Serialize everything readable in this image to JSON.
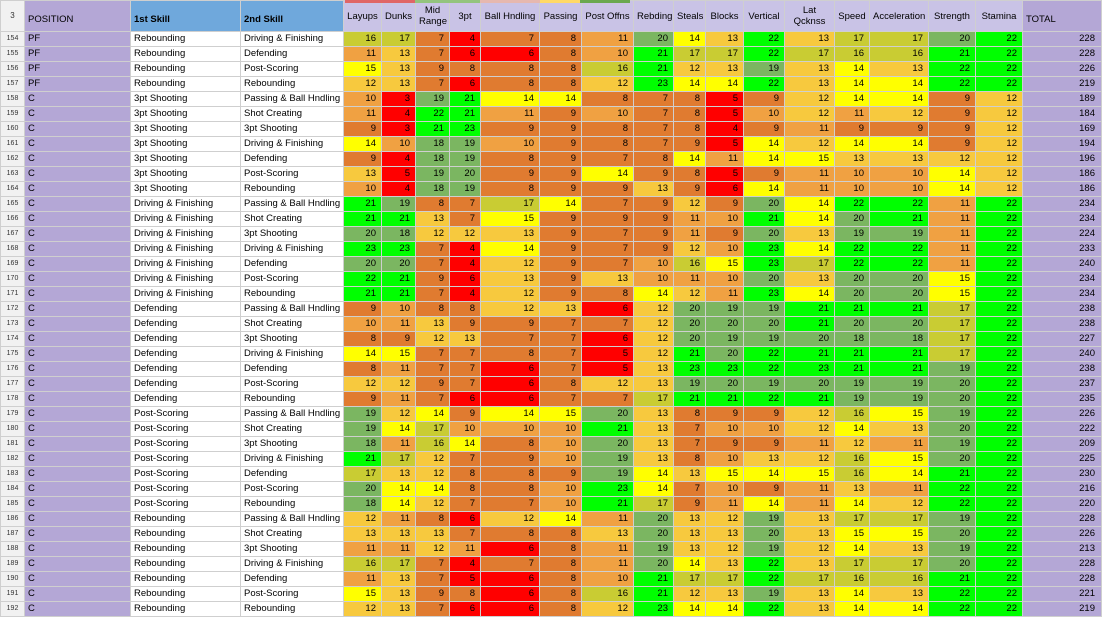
{
  "sheet": {
    "header_row_number": "3",
    "headers": {
      "position": "POSITION",
      "skill1": "1st Skill",
      "skill2": "2nd Skill",
      "stats": [
        "Layups",
        "Dunks",
        "Mid Range",
        "3pt",
        "Ball Hndling",
        "Passing",
        "Post Offns",
        "Rebding",
        "Steals",
        "Blocks",
        "Vertical",
        "Lat Qcknss",
        "Speed",
        "Acceleration",
        "Strength",
        "Stamina"
      ],
      "total": "TOTAL"
    },
    "header_accent_colors": [
      "#e06666",
      "#93c47d",
      "#e6b8af",
      "#ffd966",
      "#6aa84f"
    ],
    "cell_colors": {
      "red": "#ff0000",
      "dark_orange": "#e07b30",
      "orange": "#f0a142",
      "yellow_orange": "#f7c93e",
      "yellow": "#ffff00",
      "olive": "#c9cc33",
      "muted_green": "#7bb661",
      "green": "#00ff00",
      "position_lavender": "#b4a7d6",
      "skill_blue": "#6fa8dc"
    },
    "rows": [
      {
        "n": "154",
        "pos": "PF",
        "s1": "Rebounding",
        "s2": "Driving & Finishing",
        "v": [
          "16",
          "17",
          "7",
          "4",
          "7",
          "8",
          "11",
          "20",
          "14",
          "13",
          "22",
          "13",
          "17",
          "17",
          "20",
          "22"
        ],
        "total": "228"
      },
      {
        "n": "155",
        "pos": "PF",
        "s1": "Rebounding",
        "s2": "Defending",
        "v": [
          "11",
          "13",
          "7",
          "6",
          "6",
          "8",
          "10",
          "21",
          "17",
          "17",
          "22",
          "17",
          "16",
          "16",
          "21",
          "22"
        ],
        "total": "228"
      },
      {
        "n": "156",
        "pos": "PF",
        "s1": "Rebounding",
        "s2": "Post-Scoring",
        "v": [
          "15",
          "13",
          "9",
          "8",
          "8",
          "8",
          "16",
          "21",
          "12",
          "13",
          "19",
          "13",
          "14",
          "13",
          "22",
          "22"
        ],
        "total": "226"
      },
      {
        "n": "157",
        "pos": "PF",
        "s1": "Rebounding",
        "s2": "Rebounding",
        "v": [
          "12",
          "13",
          "7",
          "6",
          "8",
          "8",
          "12",
          "23",
          "14",
          "14",
          "22",
          "13",
          "14",
          "14",
          "22",
          "22"
        ],
        "total": "219"
      },
      {
        "n": "158",
        "pos": "C",
        "s1": "3pt Shooting",
        "s2": "Passing & Ball Hndling",
        "v": [
          "10",
          "3",
          "19",
          "21",
          "14",
          "14",
          "8",
          "7",
          "8",
          "5",
          "9",
          "12",
          "14",
          "14",
          "9",
          "12"
        ],
        "total": "189"
      },
      {
        "n": "159",
        "pos": "C",
        "s1": "3pt Shooting",
        "s2": "Shot Creating",
        "v": [
          "11",
          "4",
          "22",
          "21",
          "11",
          "9",
          "10",
          "7",
          "8",
          "5",
          "10",
          "12",
          "11",
          "12",
          "9",
          "12"
        ],
        "total": "184"
      },
      {
        "n": "160",
        "pos": "C",
        "s1": "3pt Shooting",
        "s2": "3pt Shooting",
        "v": [
          "9",
          "3",
          "21",
          "23",
          "9",
          "9",
          "8",
          "7",
          "8",
          "4",
          "9",
          "11",
          "9",
          "9",
          "9",
          "12"
        ],
        "total": "169"
      },
      {
        "n": "161",
        "pos": "C",
        "s1": "3pt Shooting",
        "s2": "Driving & Finishing",
        "v": [
          "14",
          "10",
          "18",
          "19",
          "10",
          "9",
          "8",
          "7",
          "9",
          "5",
          "14",
          "12",
          "14",
          "14",
          "9",
          "12"
        ],
        "total": "194"
      },
      {
        "n": "162",
        "pos": "C",
        "s1": "3pt Shooting",
        "s2": "Defending",
        "v": [
          "9",
          "4",
          "18",
          "19",
          "8",
          "9",
          "7",
          "8",
          "14",
          "11",
          "14",
          "15",
          "13",
          "13",
          "12",
          "12"
        ],
        "total": "196"
      },
      {
        "n": "163",
        "pos": "C",
        "s1": "3pt Shooting",
        "s2": "Post-Scoring",
        "v": [
          "13",
          "5",
          "19",
          "20",
          "9",
          "9",
          "14",
          "9",
          "8",
          "5",
          "9",
          "11",
          "10",
          "10",
          "14",
          "12"
        ],
        "total": "186"
      },
      {
        "n": "164",
        "pos": "C",
        "s1": "3pt Shooting",
        "s2": "Rebounding",
        "v": [
          "10",
          "4",
          "18",
          "19",
          "8",
          "9",
          "9",
          "13",
          "9",
          "6",
          "14",
          "11",
          "10",
          "10",
          "14",
          "12"
        ],
        "total": "186"
      },
      {
        "n": "165",
        "pos": "C",
        "s1": "Driving & Finishing",
        "s2": "Passing & Ball Hndling",
        "v": [
          "21",
          "19",
          "8",
          "7",
          "17",
          "14",
          "7",
          "9",
          "12",
          "9",
          "20",
          "14",
          "22",
          "22",
          "11",
          "22"
        ],
        "total": "234"
      },
      {
        "n": "166",
        "pos": "C",
        "s1": "Driving & Finishing",
        "s2": "Shot Creating",
        "v": [
          "21",
          "21",
          "13",
          "7",
          "15",
          "9",
          "9",
          "9",
          "11",
          "10",
          "21",
          "14",
          "20",
          "21",
          "11",
          "22"
        ],
        "total": "234"
      },
      {
        "n": "167",
        "pos": "C",
        "s1": "Driving & Finishing",
        "s2": "3pt Shooting",
        "v": [
          "20",
          "18",
          "12",
          "12",
          "13",
          "9",
          "7",
          "9",
          "11",
          "9",
          "20",
          "13",
          "19",
          "19",
          "11",
          "22"
        ],
        "total": "224"
      },
      {
        "n": "168",
        "pos": "C",
        "s1": "Driving & Finishing",
        "s2": "Driving & Finishing",
        "v": [
          "23",
          "23",
          "7",
          "4",
          "14",
          "9",
          "7",
          "9",
          "12",
          "10",
          "23",
          "14",
          "22",
          "22",
          "11",
          "22"
        ],
        "total": "233"
      },
      {
        "n": "169",
        "pos": "C",
        "s1": "Driving & Finishing",
        "s2": "Defending",
        "v": [
          "20",
          "20",
          "7",
          "4",
          "12",
          "9",
          "7",
          "10",
          "16",
          "15",
          "23",
          "17",
          "22",
          "22",
          "11",
          "22"
        ],
        "total": "240"
      },
      {
        "n": "170",
        "pos": "C",
        "s1": "Driving & Finishing",
        "s2": "Post-Scoring",
        "v": [
          "22",
          "21",
          "9",
          "6",
          "13",
          "9",
          "13",
          "10",
          "11",
          "10",
          "20",
          "13",
          "20",
          "20",
          "15",
          "22"
        ],
        "total": "234"
      },
      {
        "n": "171",
        "pos": "C",
        "s1": "Driving & Finishing",
        "s2": "Rebounding",
        "v": [
          "21",
          "21",
          "7",
          "4",
          "12",
          "9",
          "8",
          "14",
          "12",
          "11",
          "23",
          "14",
          "20",
          "20",
          "15",
          "22"
        ],
        "total": "234"
      },
      {
        "n": "172",
        "pos": "C",
        "s1": "Defending",
        "s2": "Passing & Ball Hndling",
        "v": [
          "9",
          "10",
          "8",
          "8",
          "12",
          "13",
          "6",
          "12",
          "20",
          "19",
          "19",
          "21",
          "21",
          "21",
          "17",
          "22"
        ],
        "total": "238"
      },
      {
        "n": "173",
        "pos": "C",
        "s1": "Defending",
        "s2": "Shot Creating",
        "v": [
          "10",
          "11",
          "13",
          "9",
          "9",
          "7",
          "7",
          "12",
          "20",
          "20",
          "20",
          "21",
          "20",
          "20",
          "17",
          "22"
        ],
        "total": "238"
      },
      {
        "n": "174",
        "pos": "C",
        "s1": "Defending",
        "s2": "3pt Shooting",
        "v": [
          "8",
          "9",
          "12",
          "13",
          "7",
          "7",
          "6",
          "12",
          "20",
          "19",
          "19",
          "20",
          "18",
          "18",
          "17",
          "22"
        ],
        "total": "227"
      },
      {
        "n": "175",
        "pos": "C",
        "s1": "Defending",
        "s2": "Driving & Finishing",
        "v": [
          "14",
          "15",
          "7",
          "7",
          "8",
          "7",
          "5",
          "12",
          "21",
          "20",
          "22",
          "21",
          "21",
          "21",
          "17",
          "22"
        ],
        "total": "240"
      },
      {
        "n": "176",
        "pos": "C",
        "s1": "Defending",
        "s2": "Defending",
        "v": [
          "8",
          "11",
          "7",
          "7",
          "6",
          "7",
          "5",
          "13",
          "23",
          "23",
          "22",
          "23",
          "21",
          "21",
          "19",
          "22"
        ],
        "total": "238"
      },
      {
        "n": "177",
        "pos": "C",
        "s1": "Defending",
        "s2": "Post-Scoring",
        "v": [
          "12",
          "12",
          "9",
          "7",
          "6",
          "8",
          "12",
          "13",
          "19",
          "20",
          "19",
          "20",
          "19",
          "19",
          "20",
          "22"
        ],
        "total": "237"
      },
      {
        "n": "178",
        "pos": "C",
        "s1": "Defending",
        "s2": "Rebounding",
        "v": [
          "9",
          "11",
          "7",
          "6",
          "6",
          "7",
          "7",
          "17",
          "21",
          "21",
          "22",
          "21",
          "19",
          "19",
          "20",
          "22"
        ],
        "total": "235"
      },
      {
        "n": "179",
        "pos": "C",
        "s1": "Post-Scoring",
        "s2": "Passing & Ball Hndling",
        "v": [
          "19",
          "12",
          "14",
          "9",
          "14",
          "15",
          "20",
          "13",
          "8",
          "9",
          "9",
          "12",
          "16",
          "15",
          "19",
          "22"
        ],
        "total": "226"
      },
      {
        "n": "180",
        "pos": "C",
        "s1": "Post-Scoring",
        "s2": "Shot Creating",
        "v": [
          "19",
          "14",
          "17",
          "10",
          "10",
          "10",
          "21",
          "13",
          "7",
          "10",
          "10",
          "12",
          "14",
          "13",
          "20",
          "22"
        ],
        "total": "222"
      },
      {
        "n": "181",
        "pos": "C",
        "s1": "Post-Scoring",
        "s2": "3pt Shooting",
        "v": [
          "18",
          "11",
          "16",
          "14",
          "8",
          "10",
          "20",
          "13",
          "7",
          "9",
          "9",
          "11",
          "12",
          "11",
          "19",
          "22"
        ],
        "total": "209"
      },
      {
        "n": "182",
        "pos": "C",
        "s1": "Post-Scoring",
        "s2": "Driving & Finishing",
        "v": [
          "21",
          "17",
          "12",
          "7",
          "9",
          "10",
          "19",
          "13",
          "8",
          "10",
          "13",
          "12",
          "16",
          "15",
          "20",
          "22"
        ],
        "total": "225"
      },
      {
        "n": "183",
        "pos": "C",
        "s1": "Post-Scoring",
        "s2": "Defending",
        "v": [
          "17",
          "13",
          "12",
          "8",
          "8",
          "9",
          "19",
          "14",
          "13",
          "15",
          "14",
          "15",
          "16",
          "14",
          "21",
          "22"
        ],
        "total": "230"
      },
      {
        "n": "184",
        "pos": "C",
        "s1": "Post-Scoring",
        "s2": "Post-Scoring",
        "v": [
          "20",
          "14",
          "14",
          "8",
          "8",
          "10",
          "23",
          "14",
          "7",
          "10",
          "9",
          "11",
          "13",
          "11",
          "22",
          "22"
        ],
        "total": "216"
      },
      {
        "n": "185",
        "pos": "C",
        "s1": "Post-Scoring",
        "s2": "Rebounding",
        "v": [
          "18",
          "14",
          "12",
          "7",
          "7",
          "10",
          "21",
          "17",
          "9",
          "11",
          "14",
          "11",
          "14",
          "12",
          "22",
          "22"
        ],
        "total": "220"
      },
      {
        "n": "186",
        "pos": "C",
        "s1": "Rebounding",
        "s2": "Passing & Ball Hndling",
        "v": [
          "12",
          "11",
          "8",
          "6",
          "12",
          "14",
          "11",
          "20",
          "13",
          "12",
          "19",
          "13",
          "17",
          "17",
          "19",
          "22"
        ],
        "total": "228"
      },
      {
        "n": "187",
        "pos": "C",
        "s1": "Rebounding",
        "s2": "Shot Creating",
        "v": [
          "13",
          "13",
          "13",
          "7",
          "8",
          "8",
          "13",
          "20",
          "13",
          "13",
          "20",
          "13",
          "15",
          "15",
          "20",
          "22"
        ],
        "total": "226"
      },
      {
        "n": "188",
        "pos": "C",
        "s1": "Rebounding",
        "s2": "3pt Shooting",
        "v": [
          "11",
          "11",
          "12",
          "11",
          "6",
          "8",
          "11",
          "19",
          "13",
          "12",
          "19",
          "12",
          "14",
          "13",
          "19",
          "22"
        ],
        "total": "213"
      },
      {
        "n": "189",
        "pos": "C",
        "s1": "Rebounding",
        "s2": "Driving & Finishing",
        "v": [
          "16",
          "17",
          "7",
          "4",
          "7",
          "8",
          "11",
          "20",
          "14",
          "13",
          "22",
          "13",
          "17",
          "17",
          "20",
          "22"
        ],
        "total": "228"
      },
      {
        "n": "190",
        "pos": "C",
        "s1": "Rebounding",
        "s2": "Defending",
        "v": [
          "11",
          "13",
          "7",
          "5",
          "6",
          "8",
          "10",
          "21",
          "17",
          "17",
          "22",
          "17",
          "16",
          "16",
          "21",
          "22"
        ],
        "total": "228"
      },
      {
        "n": "191",
        "pos": "C",
        "s1": "Rebounding",
        "s2": "Post-Scoring",
        "v": [
          "15",
          "13",
          "9",
          "8",
          "6",
          "8",
          "16",
          "21",
          "12",
          "13",
          "19",
          "13",
          "14",
          "13",
          "22",
          "22"
        ],
        "total": "221"
      },
      {
        "n": "192",
        "pos": "C",
        "s1": "Rebounding",
        "s2": "Rebounding",
        "v": [
          "12",
          "13",
          "7",
          "6",
          "6",
          "8",
          "12",
          "23",
          "14",
          "14",
          "22",
          "13",
          "14",
          "14",
          "22",
          "22"
        ],
        "total": "219"
      }
    ]
  }
}
